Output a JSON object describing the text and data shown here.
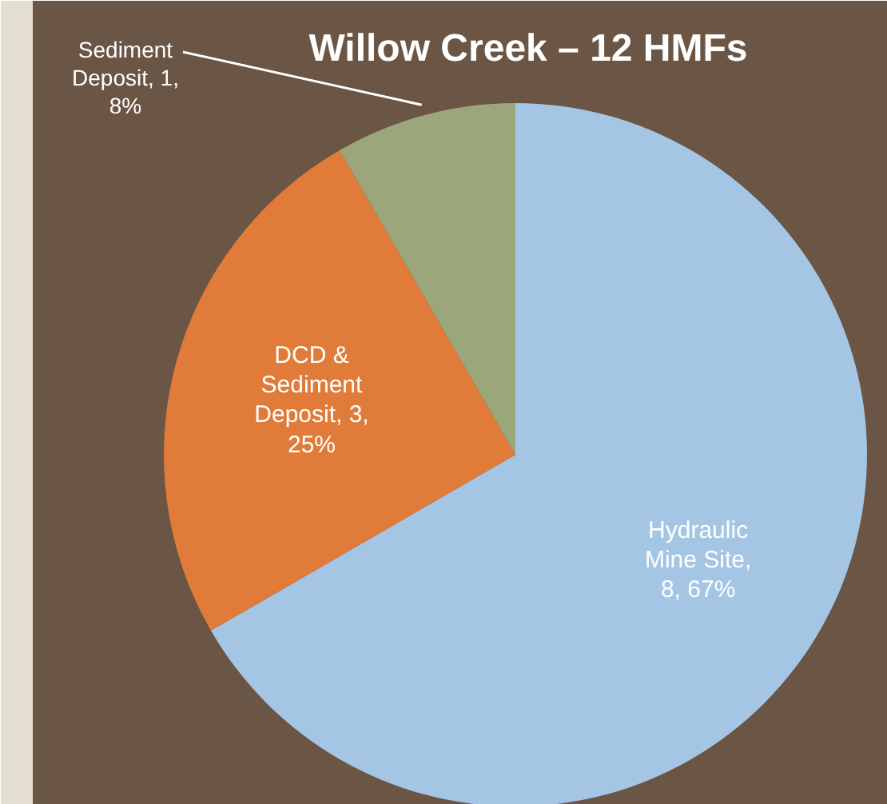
{
  "chart_data": {
    "type": "pie",
    "title": "Willow Creek – 12 HMFs",
    "categories": [
      "Hydraulic Mine Site",
      "DCD & Sediment Deposit",
      "Sediment Deposit"
    ],
    "values": [
      8,
      3,
      1
    ],
    "value_labels": [
      ", 8, 67%",
      ", 3, 25%",
      ", 1, 8%"
    ],
    "colors": [
      "#a5c5e4",
      "#e07b3a",
      "#9ba67b"
    ]
  }
}
